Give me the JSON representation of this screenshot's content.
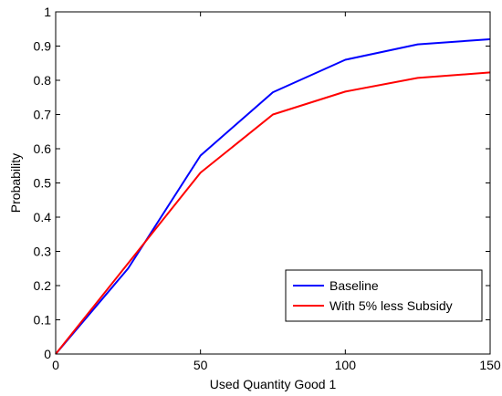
{
  "chart_data": {
    "type": "line",
    "title": "",
    "xlabel": "Used Quantity Good 1",
    "ylabel": "Probability",
    "xlim": [
      0,
      150
    ],
    "ylim": [
      0,
      1
    ],
    "xticks": [
      0,
      50,
      100,
      150
    ],
    "yticks": [
      0,
      0.1,
      0.2,
      0.3,
      0.4,
      0.5,
      0.6,
      0.7,
      0.8,
      0.9,
      1
    ],
    "ytick_labels": [
      "0",
      "0.1",
      "0.2",
      "0.3",
      "0.4",
      "0.5",
      "0.6",
      "0.7",
      "0.8",
      "0.9",
      "1"
    ],
    "grid": false,
    "legend_position": "bottom-right",
    "x": [
      0,
      25,
      50,
      75,
      100,
      125,
      150
    ],
    "series": [
      {
        "name": "Baseline",
        "color": "#0000ff",
        "values": [
          0.0,
          0.25,
          0.58,
          0.765,
          0.86,
          0.905,
          0.92
        ]
      },
      {
        "name": "With 5% less Subsidy",
        "color": "#ff0000",
        "values": [
          0.0,
          0.265,
          0.53,
          0.7,
          0.767,
          0.807,
          0.823
        ]
      }
    ]
  }
}
